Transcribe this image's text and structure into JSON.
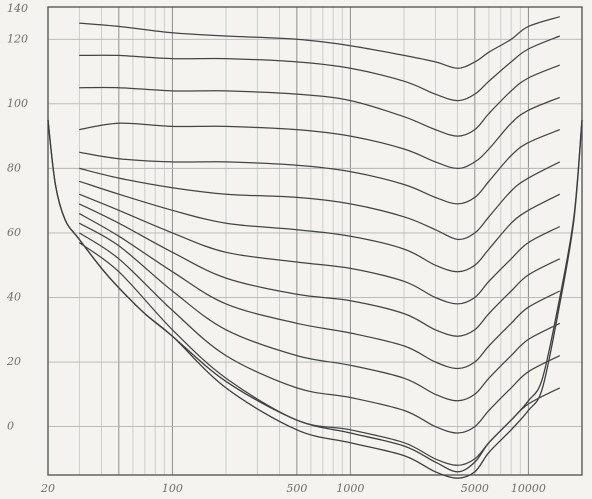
{
  "chart_data": {
    "type": "line",
    "title": "",
    "xlabel": "",
    "ylabel": "",
    "xscale": "log",
    "xlim": [
      20,
      20000
    ],
    "ylim": [
      -15,
      130
    ],
    "grid": true,
    "x_tick_labels": [
      {
        "value": 20,
        "label": "20"
      },
      {
        "value": 100,
        "label": "100"
      },
      {
        "value": 500,
        "label": "500"
      },
      {
        "value": 1000,
        "label": "1000"
      },
      {
        "value": 5000,
        "label": "5000"
      },
      {
        "value": 10000,
        "label": "10000"
      }
    ],
    "y_tick_labels": [
      {
        "value": 0,
        "label": "0"
      },
      {
        "value": 20,
        "label": "20"
      },
      {
        "value": 40,
        "label": "40"
      },
      {
        "value": 60,
        "label": "60"
      },
      {
        "value": 80,
        "label": "80"
      },
      {
        "value": 100,
        "label": "100"
      },
      {
        "value": 120,
        "label": "120"
      },
      {
        "value": 140,
        "label": "140"
      }
    ],
    "x": [
      30,
      50,
      100,
      200,
      500,
      1000,
      2000,
      3000,
      4000,
      5000,
      6000,
      8000,
      10000,
      15000
    ],
    "series": [
      {
        "values": [
          125,
          124,
          122,
          121,
          120,
          118,
          115,
          113,
          111,
          113,
          116,
          120,
          124,
          127
        ]
      },
      {
        "values": [
          115,
          115,
          114,
          114,
          113,
          111,
          107,
          103,
          101,
          103,
          107,
          113,
          117,
          121
        ]
      },
      {
        "values": [
          105,
          105,
          104,
          104,
          103,
          101,
          96,
          92,
          90,
          92,
          97,
          104,
          108,
          112
        ]
      },
      {
        "values": [
          92,
          94,
          93,
          93,
          92,
          90,
          86,
          82,
          80,
          82,
          86,
          94,
          98,
          102
        ]
      },
      {
        "values": [
          85,
          83,
          82,
          82,
          81,
          79,
          75,
          71,
          69,
          71,
          76,
          84,
          88,
          92
        ]
      },
      {
        "values": [
          80,
          77,
          74,
          72,
          71,
          69,
          65,
          61,
          58,
          60,
          65,
          73,
          77,
          82
        ]
      },
      {
        "values": [
          76,
          72,
          67,
          63,
          61,
          59,
          55,
          50,
          48,
          50,
          55,
          63,
          67,
          72
        ]
      },
      {
        "values": [
          72,
          67,
          60,
          54,
          51,
          49,
          45,
          40,
          38,
          40,
          45,
          52,
          57,
          62
        ]
      },
      {
        "values": [
          69,
          63,
          54,
          46,
          41,
          39,
          35,
          30,
          28,
          30,
          35,
          42,
          47,
          52
        ]
      },
      {
        "values": [
          66,
          59,
          48,
          38,
          32,
          29,
          25,
          20,
          18,
          20,
          25,
          32,
          37,
          42
        ]
      },
      {
        "values": [
          63,
          56,
          42,
          30,
          22,
          19,
          15,
          10,
          8,
          10,
          15,
          22,
          27,
          32
        ]
      },
      {
        "values": [
          60,
          52,
          36,
          22,
          12,
          9,
          5,
          0,
          -2,
          0,
          5,
          12,
          17,
          22
        ]
      },
      {
        "values": [
          57,
          48,
          30,
          15,
          2,
          -1,
          -5,
          -10,
          -12,
          -10,
          -5,
          2,
          7,
          12
        ]
      }
    ],
    "thresholds": {
      "x": [
        20,
        22,
        25,
        30,
        40,
        50,
        70,
        100,
        200,
        500,
        1000,
        2000,
        3000,
        4000,
        5000,
        6000,
        8000,
        10000,
        12000,
        15000,
        18000,
        20000
      ],
      "upper": [
        95,
        75,
        64,
        58,
        49,
        43,
        35,
        28,
        14,
        2,
        -2,
        -6,
        -11,
        -14,
        -11,
        -5,
        2,
        8,
        15,
        40,
        65,
        95
      ],
      "lower": [
        95,
        75,
        64,
        58,
        49,
        43,
        35,
        28,
        12,
        -1,
        -5,
        -9,
        -14,
        -16,
        -14,
        -8,
        -1,
        5,
        12,
        38,
        64,
        95
      ]
    }
  }
}
